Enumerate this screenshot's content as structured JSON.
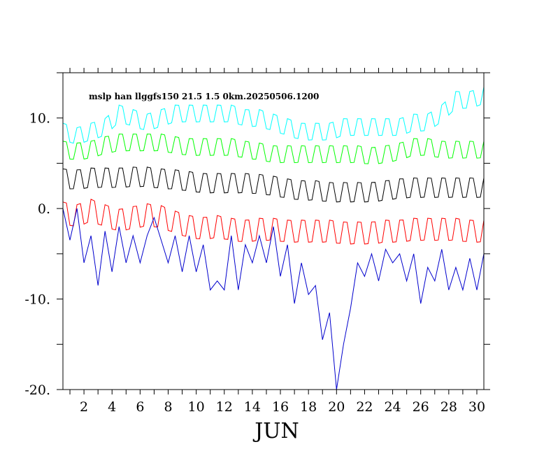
{
  "chart_data": {
    "type": "line",
    "title": "mslp han llggfs150 21.5 1.5 0km.20250506.1200",
    "xlabel": "JUN",
    "ylabel": "",
    "xlim": [
      0.5,
      30.5
    ],
    "ylim": [
      -20,
      15
    ],
    "x_tick_values": [
      2,
      4,
      6,
      8,
      10,
      12,
      14,
      16,
      18,
      20,
      22,
      24,
      26,
      28,
      30
    ],
    "x_tick_labels": [
      "2",
      "4",
      "6",
      "8",
      "10",
      "12",
      "14",
      "16",
      "18",
      "20",
      "22",
      "24",
      "26",
      "28",
      "30"
    ],
    "y_tick_values": [
      -20,
      -10,
      0,
      10
    ],
    "y_tick_labels": [
      "-20.",
      "-10.",
      "0.",
      "10."
    ],
    "y_minor_ticks": [
      -15,
      -5,
      5
    ],
    "grid": false,
    "samples_per_day": 4,
    "series": [
      {
        "color": "#00ffff",
        "anchors_x": [
          0.5,
          1.5,
          2.5,
          3.5,
          4.5,
          5.5,
          6.5,
          7.5,
          8.5,
          9.5,
          10.5,
          11.5,
          12.5,
          13.5,
          14.5,
          15.5,
          16.5,
          17.5,
          18.5,
          19.5,
          20.5,
          21.5,
          22.5,
          23.5,
          24.5,
          25.5,
          26.5,
          27.5,
          28.5,
          29.5,
          30.5
        ],
        "anchors_y": [
          8.5,
          8.0,
          8.5,
          9.0,
          10.5,
          10.0,
          9.5,
          10.0,
          10.5,
          10.5,
          10.5,
          10.5,
          10.5,
          10.0,
          10.0,
          9.5,
          9.0,
          8.5,
          8.5,
          8.5,
          9.0,
          9.0,
          9.0,
          9.0,
          9.0,
          9.5,
          9.5,
          10.5,
          12.0,
          12.0,
          12.5
        ],
        "amplitude": 1.3
      },
      {
        "color": "#00ff00",
        "anchors_x": [
          0.5,
          1.5,
          2.5,
          3.5,
          4.5,
          5.5,
          6.5,
          7.5,
          8.5,
          9.5,
          10.5,
          11.5,
          12.5,
          13.5,
          14.5,
          15.5,
          16.5,
          17.5,
          18.5,
          19.5,
          20.5,
          21.5,
          22.5,
          23.5,
          24.5,
          25.5,
          26.5,
          27.5,
          28.5,
          29.5,
          30.5
        ],
        "anchors_y": [
          6.5,
          6.3,
          6.5,
          7.0,
          7.3,
          7.3,
          7.3,
          7.3,
          7.0,
          6.8,
          6.8,
          6.8,
          6.8,
          6.5,
          6.3,
          6.0,
          6.0,
          6.0,
          6.0,
          6.0,
          6.0,
          6.0,
          5.8,
          6.0,
          6.3,
          6.8,
          6.8,
          6.5,
          6.5,
          6.5,
          6.5
        ],
        "amplitude": 1.3
      },
      {
        "color": "#000000",
        "anchors_x": [
          0.5,
          1.5,
          2.5,
          3.5,
          4.5,
          5.5,
          6.5,
          7.5,
          8.5,
          9.5,
          10.5,
          11.5,
          12.5,
          13.5,
          14.5,
          15.5,
          16.5,
          17.5,
          18.5,
          19.5,
          20.5,
          21.5,
          22.5,
          23.5,
          24.5,
          25.5,
          26.5,
          27.5,
          28.5,
          29.5,
          30.5
        ],
        "anchors_y": [
          3.3,
          3.2,
          3.4,
          3.4,
          3.4,
          3.5,
          3.5,
          3.3,
          3.2,
          3.0,
          2.8,
          2.8,
          2.8,
          2.8,
          2.7,
          2.5,
          2.2,
          2.0,
          2.0,
          1.8,
          1.8,
          1.8,
          1.8,
          2.0,
          2.2,
          2.3,
          2.3,
          2.3,
          2.3,
          2.3,
          2.3
        ],
        "amplitude": 1.5
      },
      {
        "color": "#ff0000",
        "anchors_x": [
          0.5,
          1.5,
          2.5,
          3.5,
          4.5,
          5.5,
          6.5,
          7.5,
          8.5,
          9.5,
          10.5,
          11.5,
          12.5,
          13.5,
          14.5,
          15.5,
          16.5,
          17.5,
          18.5,
          19.5,
          20.5,
          21.5,
          22.5,
          23.5,
          24.5,
          25.5,
          26.5,
          27.5,
          28.5,
          29.5,
          30.5
        ],
        "anchors_y": [
          -0.5,
          -0.8,
          -0.2,
          -0.8,
          -1.3,
          -1.0,
          -0.7,
          -0.9,
          -1.5,
          -2.0,
          -2.2,
          -2.0,
          -2.3,
          -2.5,
          -2.3,
          -2.3,
          -2.5,
          -2.5,
          -2.5,
          -2.5,
          -2.7,
          -2.7,
          -2.7,
          -2.5,
          -2.5,
          -2.3,
          -2.3,
          -2.3,
          -2.3,
          -2.5,
          -2.5
        ],
        "amplitude": 1.7
      },
      {
        "color": "#0000cd",
        "x": [
          0.5,
          1.0,
          1.5,
          2.0,
          2.5,
          3.0,
          3.5,
          4.0,
          4.5,
          5.0,
          5.5,
          6.0,
          6.5,
          7.0,
          7.5,
          8.0,
          8.5,
          9.0,
          9.5,
          10.0,
          10.5,
          11.0,
          11.5,
          12.0,
          12.5,
          13.0,
          13.5,
          14.0,
          14.5,
          15.0,
          15.5,
          16.0,
          16.5,
          17.0,
          17.5,
          18.0,
          18.5,
          19.0,
          19.5,
          20.0,
          20.5,
          21.0,
          21.5,
          22.0,
          22.5,
          23.0,
          23.5,
          24.0,
          24.5,
          25.0,
          25.5,
          26.0,
          26.5,
          27.0,
          27.5,
          28.0,
          28.5,
          29.0,
          29.5,
          30.0,
          30.5
        ],
        "y": [
          0.0,
          -3.5,
          0.0,
          -6.0,
          -3.0,
          -8.5,
          -2.5,
          -7.0,
          -2.0,
          -6.0,
          -3.0,
          -6.0,
          -3.0,
          -1.0,
          -3.5,
          -6.0,
          -3.0,
          -7.0,
          -3.0,
          -7.0,
          -4.0,
          -9.0,
          -8.0,
          -9.0,
          -3.0,
          -9.0,
          -4.0,
          -6.0,
          -3.0,
          -6.0,
          -2.0,
          -7.5,
          -4.0,
          -10.5,
          -6.0,
          -9.5,
          -8.5,
          -14.5,
          -11.5,
          -20.0,
          -15.0,
          -11.0,
          -6.0,
          -7.5,
          -5.0,
          -8.0,
          -4.5,
          -6.0,
          -5.0,
          -8.0,
          -5.0,
          -10.5,
          -6.5,
          -8.0,
          -4.5,
          -9.0,
          -6.5,
          -9.0,
          -5.5,
          -9.0,
          -5.0
        ]
      }
    ]
  }
}
